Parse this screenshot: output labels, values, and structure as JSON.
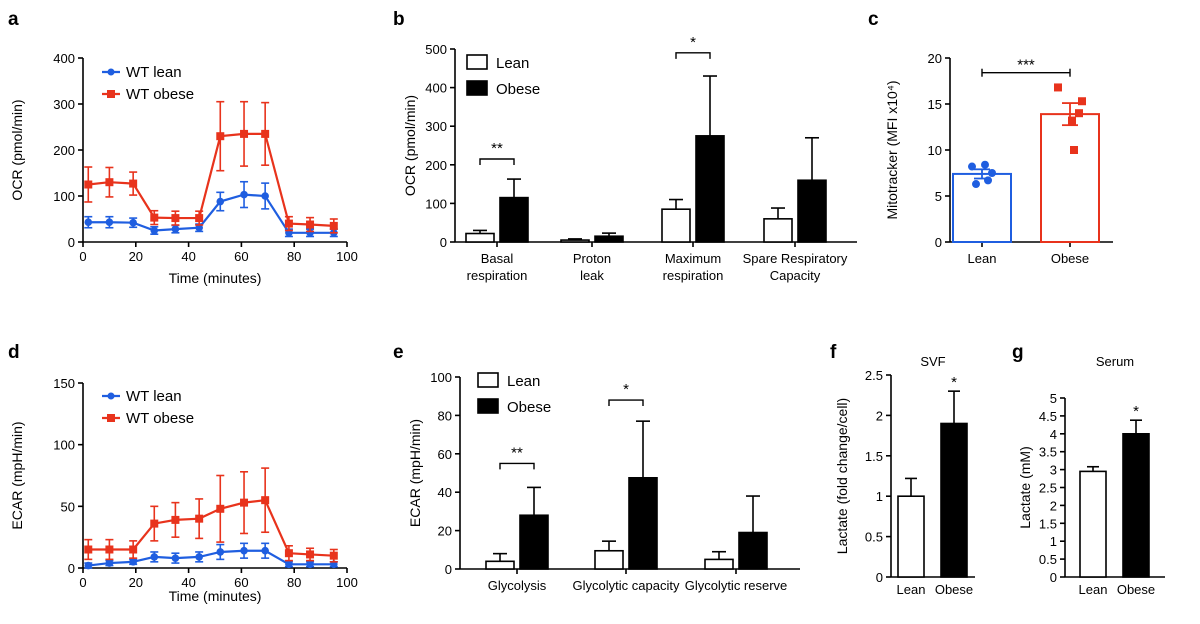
{
  "colors": {
    "lean": "#1f5ee0",
    "obese": "#e8331c",
    "black": "#000000",
    "white": "#ffffff"
  },
  "chart_data": [
    {
      "id": "a",
      "panel_label": "a",
      "type": "line",
      "xlabel": "Time (minutes)",
      "ylabel": "OCR (pmol/min)",
      "xlim": [
        0,
        100
      ],
      "ylim": [
        0,
        400
      ],
      "xticks": [
        0,
        20,
        40,
        60,
        80,
        100
      ],
      "yticks": [
        0,
        100,
        200,
        300,
        400
      ],
      "legend": "top-left",
      "series": [
        {
          "name": "WT lean",
          "color": "#1f5ee0",
          "marker": "circle",
          "x": [
            2,
            10,
            19,
            27,
            35,
            44,
            52,
            61,
            69,
            78,
            86,
            95
          ],
          "y": [
            43,
            43,
            42,
            25,
            28,
            31,
            88,
            103,
            100,
            20,
            20,
            20
          ],
          "err": [
            12,
            12,
            10,
            8,
            8,
            8,
            20,
            28,
            28,
            8,
            8,
            8
          ]
        },
        {
          "name": "WT obese",
          "color": "#e8331c",
          "marker": "square",
          "x": [
            2,
            10,
            19,
            27,
            35,
            44,
            52,
            61,
            69,
            78,
            86,
            95
          ],
          "y": [
            125,
            130,
            127,
            53,
            52,
            52,
            230,
            235,
            235,
            40,
            38,
            35
          ],
          "err": [
            38,
            32,
            25,
            15,
            15,
            15,
            75,
            70,
            68,
            15,
            15,
            15
          ]
        }
      ]
    },
    {
      "id": "b",
      "panel_label": "b",
      "type": "bar",
      "ylabel": "OCR (pmol/min)",
      "ylim": [
        0,
        500
      ],
      "yticks": [
        0,
        100,
        200,
        300,
        400,
        500
      ],
      "legend": "top-left",
      "categories": [
        [
          "Basal",
          "respiration"
        ],
        [
          "Proton",
          "leak"
        ],
        [
          "Maximum",
          "respiration"
        ],
        [
          "Spare Respiratory",
          "Capacity"
        ]
      ],
      "series": [
        {
          "name": "Lean",
          "fill": "white",
          "values": [
            22,
            5,
            85,
            60
          ],
          "err": [
            8,
            3,
            25,
            28
          ]
        },
        {
          "name": "Obese",
          "fill": "black",
          "values": [
            115,
            15,
            275,
            160
          ],
          "err": [
            48,
            8,
            155,
            110
          ]
        }
      ],
      "significance": [
        {
          "category": 0,
          "label": "**",
          "y": 215
        },
        {
          "category": 2,
          "label": "*",
          "y": 490
        }
      ]
    },
    {
      "id": "c",
      "panel_label": "c",
      "type": "bar",
      "ylabel": "Mitotracker (MFI x10⁴)",
      "ylim": [
        0,
        20
      ],
      "yticks": [
        0,
        5,
        10,
        15,
        20
      ],
      "categories": [
        "Lean",
        "Obese"
      ],
      "values": [
        7.4,
        13.9
      ],
      "err": [
        0.5,
        1.2
      ],
      "colors": [
        "#1f5ee0",
        "#e8331c"
      ],
      "points": [
        [
          8.2,
          8.4,
          7.5,
          6.3,
          6.7
        ],
        [
          16.8,
          15.3,
          14.0,
          13.2,
          10.0
        ]
      ],
      "significance": {
        "label": "***",
        "y": 18.4
      }
    },
    {
      "id": "d",
      "panel_label": "d",
      "type": "line",
      "xlabel": "Time (minutes)",
      "ylabel": "ECAR (mpH/min)",
      "xlim": [
        0,
        100
      ],
      "ylim": [
        0,
        150
      ],
      "xticks": [
        0,
        20,
        40,
        60,
        80,
        100
      ],
      "yticks": [
        0,
        50,
        100,
        150
      ],
      "legend": "top-left",
      "series": [
        {
          "name": "WT lean",
          "color": "#1f5ee0",
          "marker": "circle",
          "x": [
            2,
            10,
            19,
            27,
            35,
            44,
            52,
            61,
            69,
            78,
            86,
            95
          ],
          "y": [
            2,
            4,
            5,
            9,
            8,
            9,
            13,
            14,
            14,
            3,
            3,
            3
          ],
          "err": [
            2,
            2,
            2,
            4,
            4,
            4,
            6,
            6,
            6,
            2,
            2,
            2
          ]
        },
        {
          "name": "WT obese",
          "color": "#e8331c",
          "marker": "square",
          "x": [
            2,
            10,
            19,
            27,
            35,
            44,
            52,
            61,
            69,
            78,
            86,
            95
          ],
          "y": [
            15,
            15,
            15,
            36,
            39,
            40,
            48,
            53,
            55,
            12,
            11,
            10
          ],
          "err": [
            8,
            8,
            7,
            14,
            14,
            16,
            27,
            25,
            26,
            6,
            5,
            5
          ]
        }
      ]
    },
    {
      "id": "e",
      "panel_label": "e",
      "type": "bar",
      "ylabel": "ECAR (mpH/min)",
      "ylim": [
        0,
        100
      ],
      "yticks": [
        0,
        20,
        40,
        60,
        80,
        100
      ],
      "legend": "top-left",
      "categories": [
        [
          "Glycolysis"
        ],
        [
          "Glycolytic capacity"
        ],
        [
          "Glycolytic reserve"
        ]
      ],
      "series": [
        {
          "name": "Lean",
          "fill": "white",
          "values": [
            4,
            9.5,
            5
          ],
          "err": [
            4,
            5,
            4
          ]
        },
        {
          "name": "Obese",
          "fill": "black",
          "values": [
            28,
            47.5,
            19
          ],
          "err": [
            14.5,
            29.5,
            19
          ]
        }
      ],
      "significance": [
        {
          "category": 0,
          "label": "**",
          "y": 55
        },
        {
          "category": 1,
          "label": "*",
          "y": 88
        }
      ]
    },
    {
      "id": "f",
      "panel_label": "f",
      "type": "bar",
      "title": "SVF",
      "ylabel": "Lactate (fold change/cell)",
      "ylim": [
        0,
        2.5
      ],
      "yticks": [
        0,
        0.5,
        1,
        1.5,
        2,
        2.5
      ],
      "ytick_labels": [
        "0",
        "0.5",
        "1",
        "1.5",
        "2",
        "2.5"
      ],
      "categories": [
        "Lean",
        "Obese"
      ],
      "values": [
        1.0,
        1.9
      ],
      "err": [
        0.22,
        0.4
      ],
      "fills": [
        "white",
        "black"
      ],
      "significance": {
        "category": 1,
        "label": "*"
      }
    },
    {
      "id": "g",
      "panel_label": "g",
      "type": "bar",
      "title": "Serum",
      "ylabel": "Lactate (mM)",
      "ylim": [
        0,
        5
      ],
      "yticks": [
        0,
        0.5,
        1,
        1.5,
        2,
        2.5,
        3,
        3.5,
        4,
        4.5,
        5
      ],
      "ytick_labels": [
        "0",
        "0.5",
        "1",
        "1.5",
        "2",
        "2.5",
        "3",
        "3.5",
        "4",
        "4.5",
        "5"
      ],
      "categories": [
        "Lean",
        "Obese"
      ],
      "values": [
        2.95,
        4.0
      ],
      "err": [
        0.13,
        0.38
      ],
      "fills": [
        "white",
        "black"
      ],
      "significance": {
        "category": 1,
        "label": "*"
      }
    }
  ]
}
